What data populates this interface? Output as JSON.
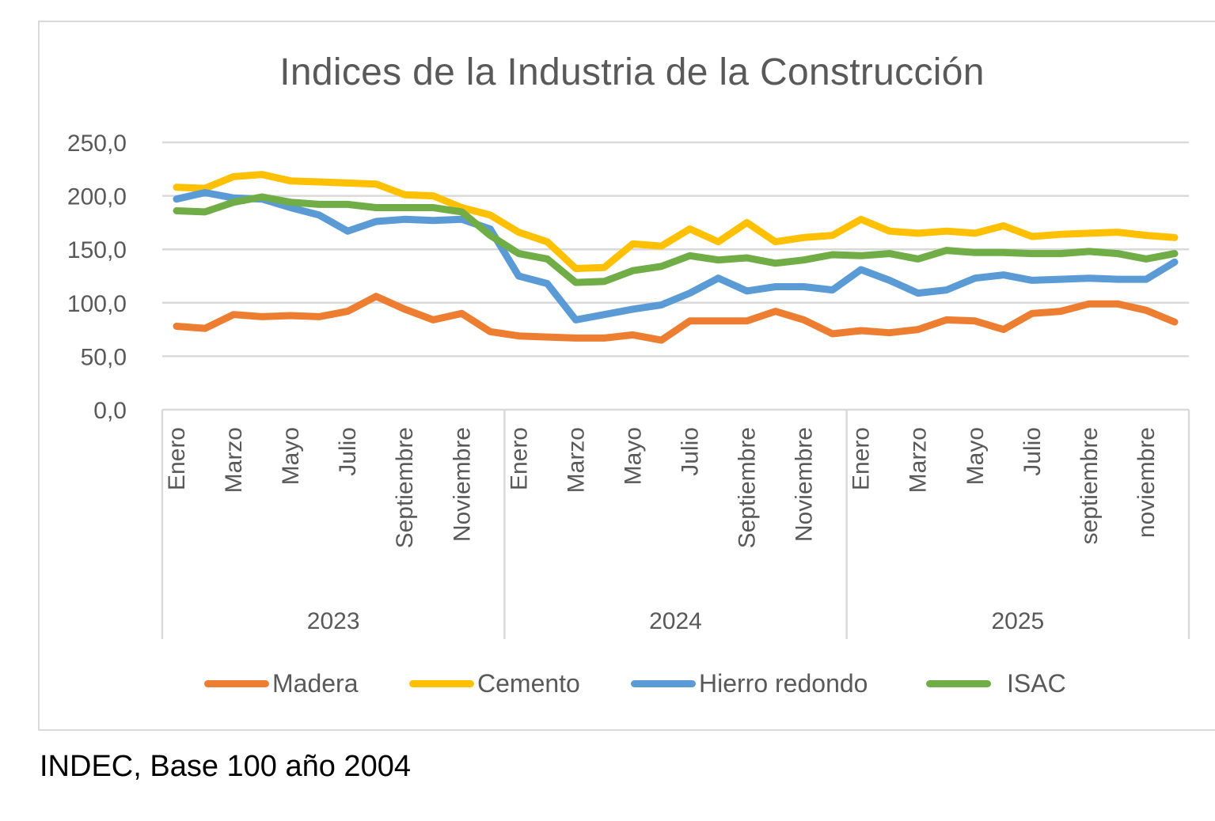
{
  "chart_data": {
    "type": "line",
    "title": "Indices de la Industria de la Construcción",
    "xlabel": "",
    "ylabel": "",
    "ylim": [
      0,
      250
    ],
    "yticks": [
      "0,0",
      "50,0",
      "100,0",
      "150,0",
      "200,0",
      "250,0"
    ],
    "ytick_values": [
      0,
      50,
      100,
      150,
      200,
      250
    ],
    "grid": true,
    "legend_position": "bottom",
    "x": [
      "Enero 2023",
      "Febrero 2023",
      "Marzo 2023",
      "Abril 2023",
      "Mayo 2023",
      "Junio 2023",
      "Julio 2023",
      "Agosto 2023",
      "Septiembre 2023",
      "Octubre 2023",
      "Noviembre 2023",
      "Diciembre 2023",
      "Enero 2024",
      "Febrero 2024",
      "Marzo 2024",
      "Abril 2024",
      "Mayo 2024",
      "Junio 2024",
      "Julio 2024",
      "Agosto 2024",
      "Septiembre 2024",
      "Octubre 2024",
      "Noviembre 2024",
      "Diciembre 2024",
      "Enero 2025",
      "Febrero 2025",
      "Marzo 2025",
      "Abril 2025",
      "Mayo 2025",
      "Junio 2025",
      "Julio 2025",
      "Agosto 2025",
      "septiembre 2025",
      "octubre 2025",
      "noviembre 2025",
      "diciembre 2025"
    ],
    "month_tick_labels": [
      {
        "index": 0,
        "label": "Enero"
      },
      {
        "index": 2,
        "label": "Marzo"
      },
      {
        "index": 4,
        "label": "Mayo"
      },
      {
        "index": 6,
        "label": "Julio"
      },
      {
        "index": 8,
        "label": "Septiembre"
      },
      {
        "index": 10,
        "label": "Noviembre"
      },
      {
        "index": 12,
        "label": "Enero"
      },
      {
        "index": 14,
        "label": "Marzo"
      },
      {
        "index": 16,
        "label": "Mayo"
      },
      {
        "index": 18,
        "label": "Julio"
      },
      {
        "index": 20,
        "label": "Septiembre"
      },
      {
        "index": 22,
        "label": "Noviembre"
      },
      {
        "index": 24,
        "label": "Enero"
      },
      {
        "index": 26,
        "label": "Marzo"
      },
      {
        "index": 28,
        "label": "Mayo"
      },
      {
        "index": 30,
        "label": "Julio"
      },
      {
        "index": 32,
        "label": "septiembre"
      },
      {
        "index": 34,
        "label": "noviembre"
      }
    ],
    "year_groups": [
      {
        "label": "2023",
        "start": 0,
        "end": 11
      },
      {
        "label": "2024",
        "start": 12,
        "end": 23
      },
      {
        "label": "2025",
        "start": 24,
        "end": 35
      }
    ],
    "series": [
      {
        "name": "Madera",
        "color": "#ED7D31",
        "values": [
          78,
          76,
          89,
          87,
          88,
          87,
          92,
          106,
          94,
          84,
          90,
          73,
          69,
          68,
          67,
          67,
          70,
          65,
          83,
          83,
          83,
          92,
          84,
          71,
          74,
          72,
          75,
          84,
          83,
          75,
          90,
          92,
          99,
          99,
          93,
          82
        ]
      },
      {
        "name": "Cemento",
        "color": "#FFC000",
        "values": [
          208,
          207,
          218,
          220,
          214,
          213,
          212,
          211,
          201,
          200,
          189,
          182,
          166,
          157,
          132,
          133,
          155,
          153,
          169,
          157,
          175,
          157,
          161,
          163,
          178,
          167,
          165,
          167,
          165,
          172,
          162,
          164,
          165,
          166,
          163,
          161
        ]
      },
      {
        "name": "Hierro redondo",
        "color": "#5B9BD5",
        "values": [
          197,
          203,
          198,
          197,
          189,
          182,
          167,
          176,
          178,
          177,
          178,
          169,
          125,
          118,
          84,
          89,
          94,
          98,
          109,
          123,
          111,
          115,
          115,
          112,
          131,
          121,
          109,
          112,
          123,
          126,
          121,
          122,
          123,
          122,
          122,
          138
        ]
      },
      {
        "name": "ISAC",
        "color": "#70AD47",
        "values": [
          186,
          185,
          194,
          199,
          194,
          192,
          192,
          189,
          189,
          189,
          185,
          163,
          146,
          141,
          119,
          120,
          130,
          134,
          144,
          140,
          142,
          137,
          140,
          145,
          144,
          146,
          141,
          149,
          147,
          147,
          146,
          146,
          148,
          146,
          141,
          146
        ]
      }
    ]
  },
  "footer": {
    "source_note": "INDEC, Base 100 año 2004"
  }
}
